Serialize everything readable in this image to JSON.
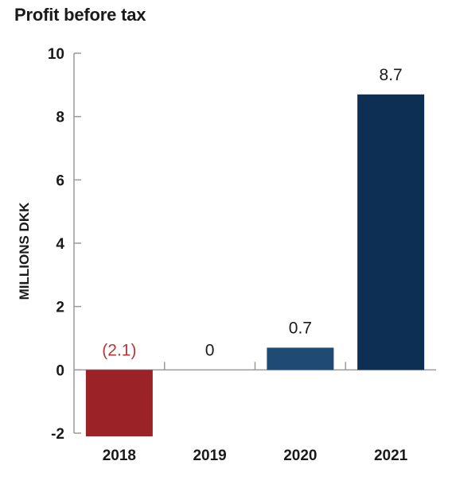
{
  "chart_data": {
    "type": "bar",
    "title": "Profit before tax",
    "ylabel": "MILLIONS DKK",
    "xlabel": "",
    "categories": [
      "2018",
      "2019",
      "2020",
      "2021"
    ],
    "values": [
      -2.1,
      0,
      0.7,
      8.7
    ],
    "data_labels": [
      "(2.1)",
      "0",
      "0.7",
      "8.7"
    ],
    "ylim": [
      -2,
      10
    ],
    "yticks": [
      -2,
      0,
      2,
      4,
      6,
      8,
      10
    ],
    "ytick_labels": [
      "-2",
      "0",
      "2",
      "4",
      "6",
      "8",
      "10"
    ],
    "bar_colors": [
      "#9b2226",
      "#1e3f66",
      "#1e4a74",
      "#0d2f53"
    ],
    "label_colors": [
      "#b23a3a",
      "#1a1a1a",
      "#1a1a1a",
      "#1a1a1a"
    ],
    "grid": false,
    "legend": "none"
  }
}
